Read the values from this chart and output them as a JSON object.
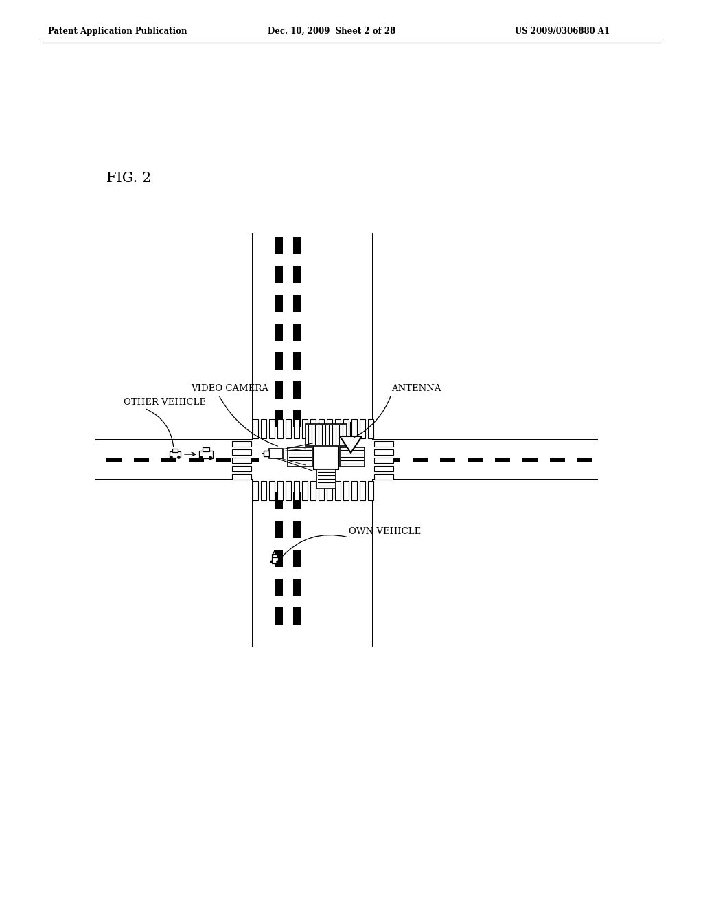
{
  "bg_color": "#ffffff",
  "header_left": "Patent Application Publication",
  "header_mid": "Dec. 10, 2009  Sheet 2 of 28",
  "header_right": "US 2009/0306880 A1",
  "fig_label": "FIG. 2",
  "label_video_camera": "VIDEO CAMERA",
  "label_other_vehicle": "OTHER VEHICLE",
  "label_antenna": "ANTENNA",
  "label_own_vehicle": "OWN VEHICLE",
  "line_color": "#000000"
}
